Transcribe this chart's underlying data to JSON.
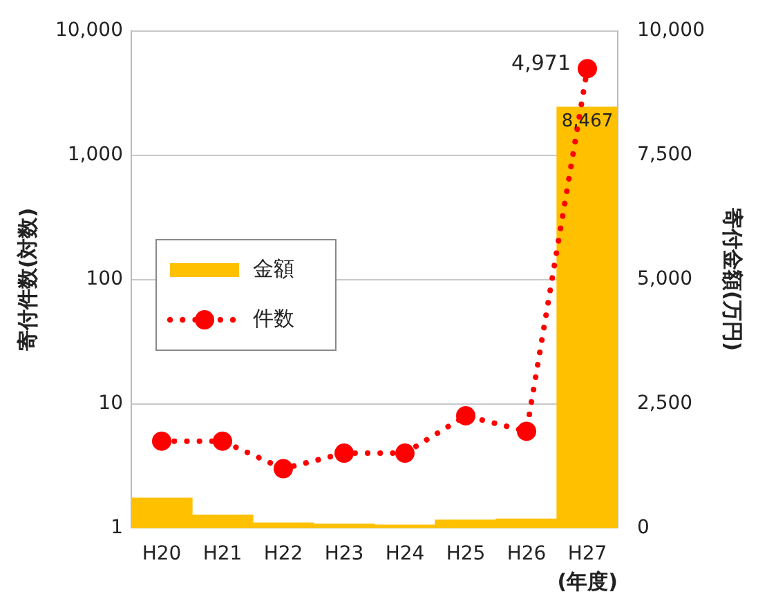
{
  "chart_data": {
    "type": "bar",
    "categories": [
      "H20",
      "H21",
      "H22",
      "H23",
      "H24",
      "H25",
      "H26",
      "H27"
    ],
    "series": [
      {
        "name": "金額",
        "axis": "y2",
        "color": "#ffc000",
        "values": [
          600,
          260,
          100,
          80,
          60,
          160,
          180,
          8467
        ],
        "value_labels": [
          null,
          null,
          null,
          null,
          null,
          null,
          null,
          "8,467"
        ]
      },
      {
        "name": "件数",
        "type": "line",
        "color": "#ff0000",
        "marker": "circle",
        "line_style": "dotted",
        "values": [
          5,
          5,
          3,
          4,
          4,
          8,
          6,
          4971
        ],
        "value_labels": [
          null,
          null,
          null,
          null,
          null,
          null,
          null,
          "4,971"
        ]
      }
    ],
    "log": "y",
    "ylim": [
      1,
      10000
    ],
    "yticks": [
      {
        "value": 1,
        "label": "1"
      },
      {
        "value": 10,
        "label": "10"
      },
      {
        "value": 100,
        "label": "100"
      },
      {
        "value": 1000,
        "label": "1,000"
      },
      {
        "value": 10000,
        "label": "10,000"
      }
    ],
    "y2lim": [
      0,
      10000
    ],
    "y2ticks": [
      {
        "value": 0,
        "label": "0"
      },
      {
        "value": 2500,
        "label": "2,500"
      },
      {
        "value": 5000,
        "label": "5,000"
      },
      {
        "value": 7500,
        "label": "7,500"
      },
      {
        "value": 10000,
        "label": "10,000"
      }
    ],
    "ylabel": "寄付件数(対数)",
    "y2label": "寄付金額(万円)",
    "xlabel": "(年度)",
    "grid": "y",
    "legend": "left"
  }
}
